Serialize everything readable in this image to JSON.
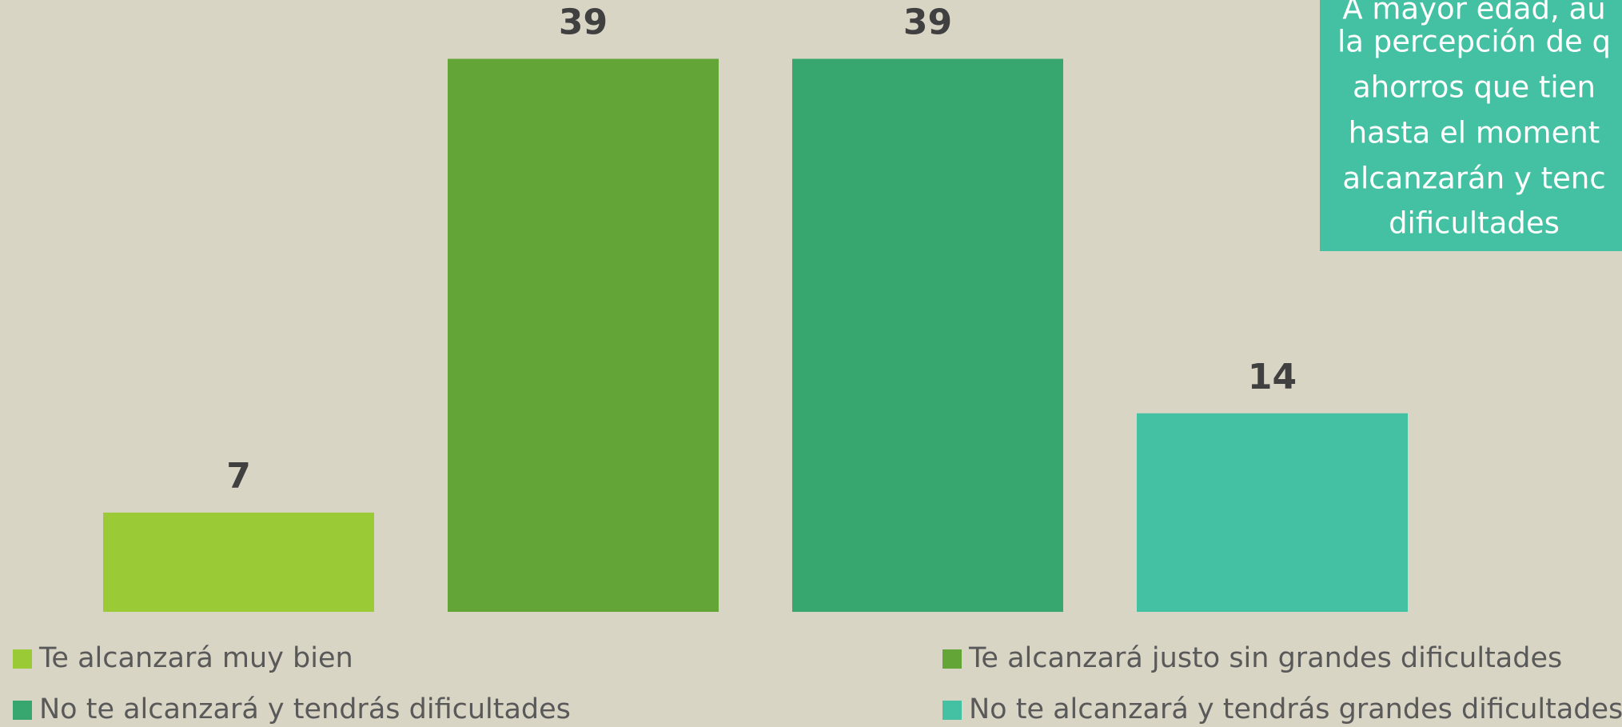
{
  "chart_data": {
    "type": "bar",
    "series": [
      {
        "name": "Te alcanzará muy bien",
        "color": "#9aca36",
        "values": [
          7
        ]
      },
      {
        "name": "Te alcanzará justo sin grandes dificultades",
        "color": "#63a537",
        "values": [
          39
        ]
      },
      {
        "name": "No te alcanzará y tendrás dificultades",
        "color": "#37a76f",
        "values": [
          39
        ]
      },
      {
        "name": "No te alcanzará y tendrás grandes dificultades",
        "color": "#44c1a3",
        "values": [
          14
        ]
      }
    ],
    "annotation": [
      "A mayor edad, au",
      "la percepción de q",
      "ahorros que tien",
      "hasta el moment",
      "alcanzarán y tenc",
      "dificultades"
    ]
  }
}
